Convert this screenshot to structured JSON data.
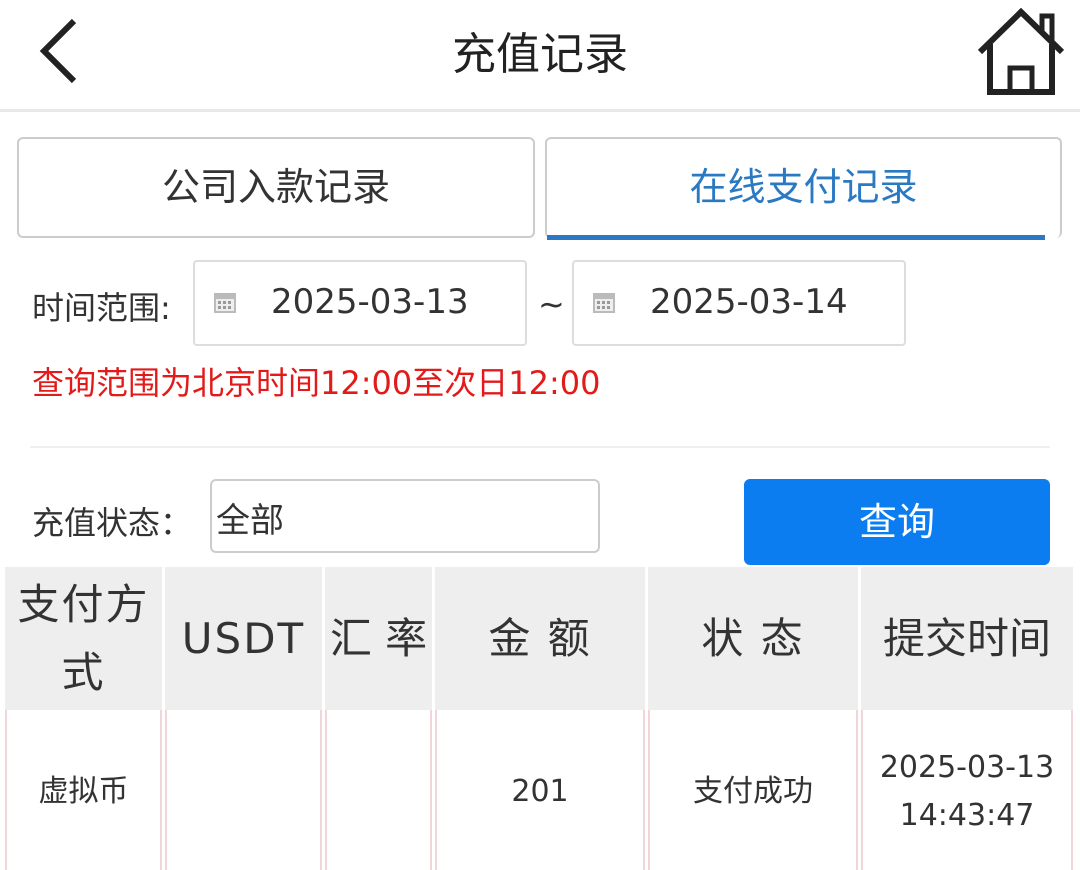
{
  "header": {
    "title": "充值记录",
    "back_icon": "chevron-left-icon",
    "home_icon": "home-icon"
  },
  "tabs": [
    {
      "label": "公司入款记录",
      "active": false
    },
    {
      "label": "在线支付记录",
      "active": true
    }
  ],
  "filters": {
    "time_range_label": "时间范围:",
    "start_date": "2025-03-13",
    "separator": "~",
    "end_date": "2025-03-14",
    "note": "查询范围为北京时间12:00至次日12:00",
    "status_label": "充值状态：",
    "status_value": "全部",
    "query_button": "查询"
  },
  "colors": {
    "accent": "#2b79c2",
    "button": "#0b7df0",
    "note": "#e31a1a"
  },
  "table": {
    "headers": [
      "支付方式",
      "USDT",
      "汇 率",
      "金 额",
      "状 态",
      "提交时间"
    ],
    "rows": [
      {
        "method": "虚拟币",
        "usdt": "",
        "rate": "",
        "amount": "201",
        "status": "支付成功",
        "date": "2025-03-13",
        "time": "14:43:47"
      }
    ]
  }
}
